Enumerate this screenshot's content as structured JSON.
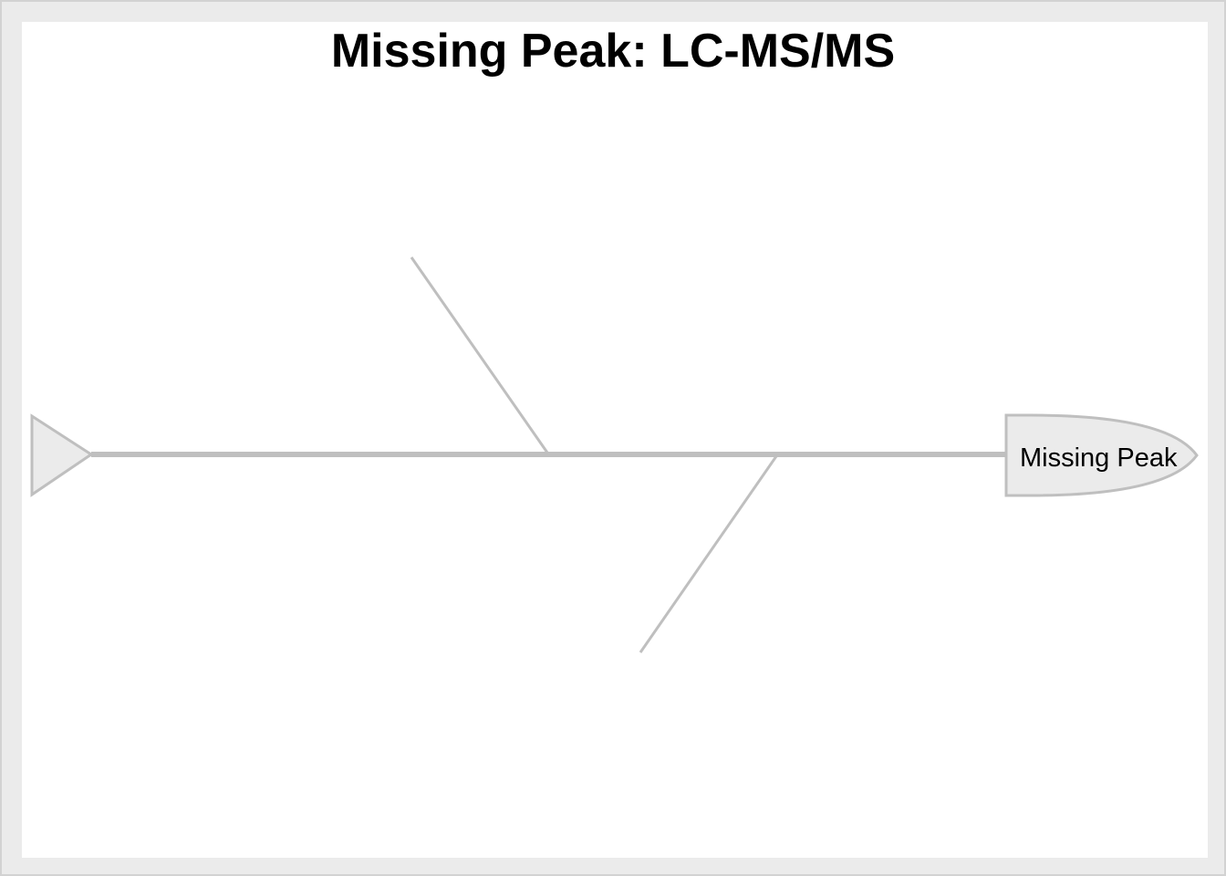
{
  "diagram": {
    "type": "fishbone",
    "title": "Missing Peak: LC-MS/MS",
    "effect": "Missing Peak",
    "causes": [
      {
        "side": "top",
        "label": ""
      },
      {
        "side": "bottom",
        "label": ""
      }
    ],
    "colors": {
      "frame_background": "#ebebeb",
      "canvas_background": "#ffffff",
      "spine": "#bfbfbf",
      "head_fill": "#ebebeb",
      "text": "#000000"
    }
  }
}
